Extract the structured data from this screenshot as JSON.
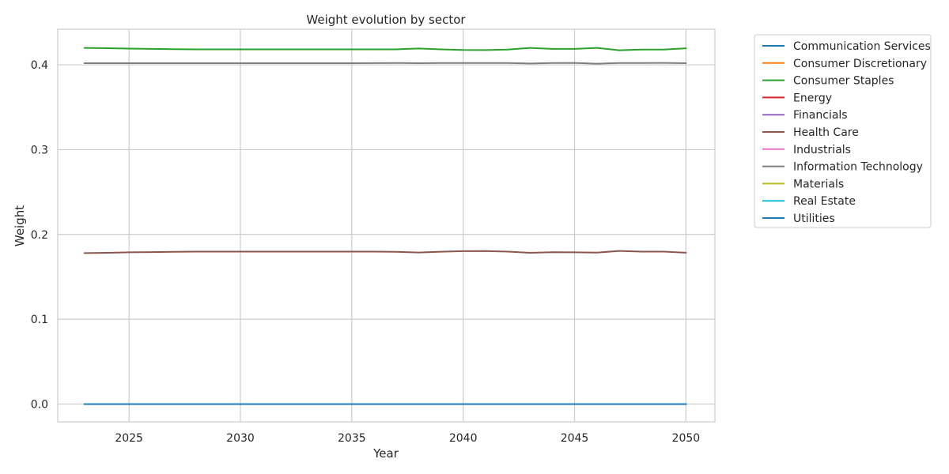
{
  "chart_data": {
    "type": "line",
    "title": "Weight evolution by sector",
    "xlabel": "Year",
    "ylabel": "Weight",
    "xlim": [
      2021.8,
      2051.3
    ],
    "ylim": [
      -0.021,
      0.442
    ],
    "x_ticks": [
      2025,
      2030,
      2035,
      2040,
      2045,
      2050
    ],
    "y_ticks": [
      0.0,
      0.1,
      0.2,
      0.3,
      0.4
    ],
    "y_tick_labels": [
      "0.0",
      "0.1",
      "0.2",
      "0.3",
      "0.4"
    ],
    "grid": true,
    "legend_placement": "outside-top-right",
    "x": [
      2023,
      2024,
      2025,
      2026,
      2027,
      2028,
      2029,
      2030,
      2031,
      2032,
      2033,
      2034,
      2035,
      2036,
      2037,
      2038,
      2039,
      2040,
      2041,
      2042,
      2043,
      2044,
      2045,
      2046,
      2047,
      2048,
      2049,
      2050
    ],
    "series": [
      {
        "name": "Communication Services",
        "color": "#1f77b4",
        "values": [
          0.0,
          0.0,
          0.0,
          0.0,
          0.0,
          0.0,
          0.0,
          0.0,
          0.0,
          0.0,
          0.0,
          0.0,
          0.0,
          0.0,
          0.0,
          0.0,
          0.0,
          0.0,
          0.0,
          0.0,
          0.0,
          0.0,
          0.0,
          0.0,
          0.0,
          0.0,
          0.0,
          0.0
        ]
      },
      {
        "name": "Consumer Discretionary",
        "color": "#ff7f0e",
        "values": [
          0.0,
          0.0,
          0.0,
          0.0,
          0.0,
          0.0,
          0.0,
          0.0,
          0.0,
          0.0,
          0.0,
          0.0,
          0.0,
          0.0,
          0.0,
          0.0,
          0.0,
          0.0,
          0.0,
          0.0,
          0.0,
          0.0,
          0.0,
          0.0,
          0.0,
          0.0,
          0.0,
          0.0
        ]
      },
      {
        "name": "Consumer Staples",
        "color": "#2ca02c",
        "values": [
          0.42,
          0.4197,
          0.4192,
          0.4188,
          0.4185,
          0.4183,
          0.4182,
          0.4182,
          0.4182,
          0.4182,
          0.4182,
          0.4182,
          0.4182,
          0.4182,
          0.4183,
          0.4193,
          0.4182,
          0.4175,
          0.4174,
          0.418,
          0.42,
          0.4188,
          0.4188,
          0.42,
          0.4172,
          0.418,
          0.418,
          0.4195
        ]
      },
      {
        "name": "Energy",
        "color": "#d62728",
        "values": [
          0.0,
          0.0,
          0.0,
          0.0,
          0.0,
          0.0,
          0.0,
          0.0,
          0.0,
          0.0,
          0.0,
          0.0,
          0.0,
          0.0,
          0.0,
          0.0,
          0.0,
          0.0,
          0.0,
          0.0,
          0.0,
          0.0,
          0.0,
          0.0,
          0.0,
          0.0,
          0.0,
          0.0
        ]
      },
      {
        "name": "Financials",
        "color": "#9467bd",
        "values": [
          0.0,
          0.0,
          0.0,
          0.0,
          0.0,
          0.0,
          0.0,
          0.0,
          0.0,
          0.0,
          0.0,
          0.0,
          0.0,
          0.0,
          0.0,
          0.0,
          0.0,
          0.0,
          0.0,
          0.0,
          0.0,
          0.0,
          0.0,
          0.0,
          0.0,
          0.0,
          0.0,
          0.0
        ]
      },
      {
        "name": "Health Care",
        "color": "#8c564b",
        "values": [
          0.178,
          0.1784,
          0.1789,
          0.1792,
          0.1795,
          0.1797,
          0.1798,
          0.1798,
          0.1798,
          0.1798,
          0.1798,
          0.1798,
          0.1798,
          0.1797,
          0.1795,
          0.1787,
          0.1796,
          0.1803,
          0.1804,
          0.1798,
          0.1784,
          0.179,
          0.1789,
          0.1786,
          0.1806,
          0.1798,
          0.1797,
          0.1785
        ]
      },
      {
        "name": "Industrials",
        "color": "#e377c2",
        "values": [
          0.0,
          0.0,
          0.0,
          0.0,
          0.0,
          0.0,
          0.0,
          0.0,
          0.0,
          0.0,
          0.0,
          0.0,
          0.0,
          0.0,
          0.0,
          0.0,
          0.0,
          0.0,
          0.0,
          0.0,
          0.0,
          0.0,
          0.0,
          0.0,
          0.0,
          0.0,
          0.0,
          0.0
        ]
      },
      {
        "name": "Information Technology",
        "color": "#7f7f7f",
        "values": [
          0.402,
          0.4019,
          0.4019,
          0.402,
          0.402,
          0.402,
          0.402,
          0.402,
          0.402,
          0.402,
          0.402,
          0.402,
          0.402,
          0.4021,
          0.4022,
          0.402,
          0.4022,
          0.4022,
          0.4022,
          0.4022,
          0.4016,
          0.4022,
          0.4023,
          0.4014,
          0.4022,
          0.4022,
          0.4023,
          0.402
        ]
      },
      {
        "name": "Materials",
        "color": "#bcbd22",
        "values": [
          0.0,
          0.0,
          0.0,
          0.0,
          0.0,
          0.0,
          0.0,
          0.0,
          0.0,
          0.0,
          0.0,
          0.0,
          0.0,
          0.0,
          0.0,
          0.0,
          0.0,
          0.0,
          0.0,
          0.0,
          0.0,
          0.0,
          0.0,
          0.0,
          0.0,
          0.0,
          0.0,
          0.0
        ]
      },
      {
        "name": "Real Estate",
        "color": "#17becf",
        "values": [
          0.0,
          0.0,
          0.0,
          0.0,
          0.0,
          0.0,
          0.0,
          0.0,
          0.0,
          0.0,
          0.0,
          0.0,
          0.0,
          0.0,
          0.0,
          0.0,
          0.0,
          0.0,
          0.0,
          0.0,
          0.0,
          0.0,
          0.0,
          0.0,
          0.0,
          0.0,
          0.0,
          0.0
        ]
      },
      {
        "name": "Utilities",
        "color": "#1f77b4",
        "values": [
          0.0,
          0.0,
          0.0,
          0.0,
          0.0,
          0.0,
          0.0,
          0.0,
          0.0,
          0.0,
          0.0,
          0.0,
          0.0,
          0.0,
          0.0,
          0.0,
          0.0,
          0.0,
          0.0,
          0.0,
          0.0,
          0.0,
          0.0,
          0.0,
          0.0,
          0.0,
          0.0,
          0.0
        ]
      }
    ]
  }
}
